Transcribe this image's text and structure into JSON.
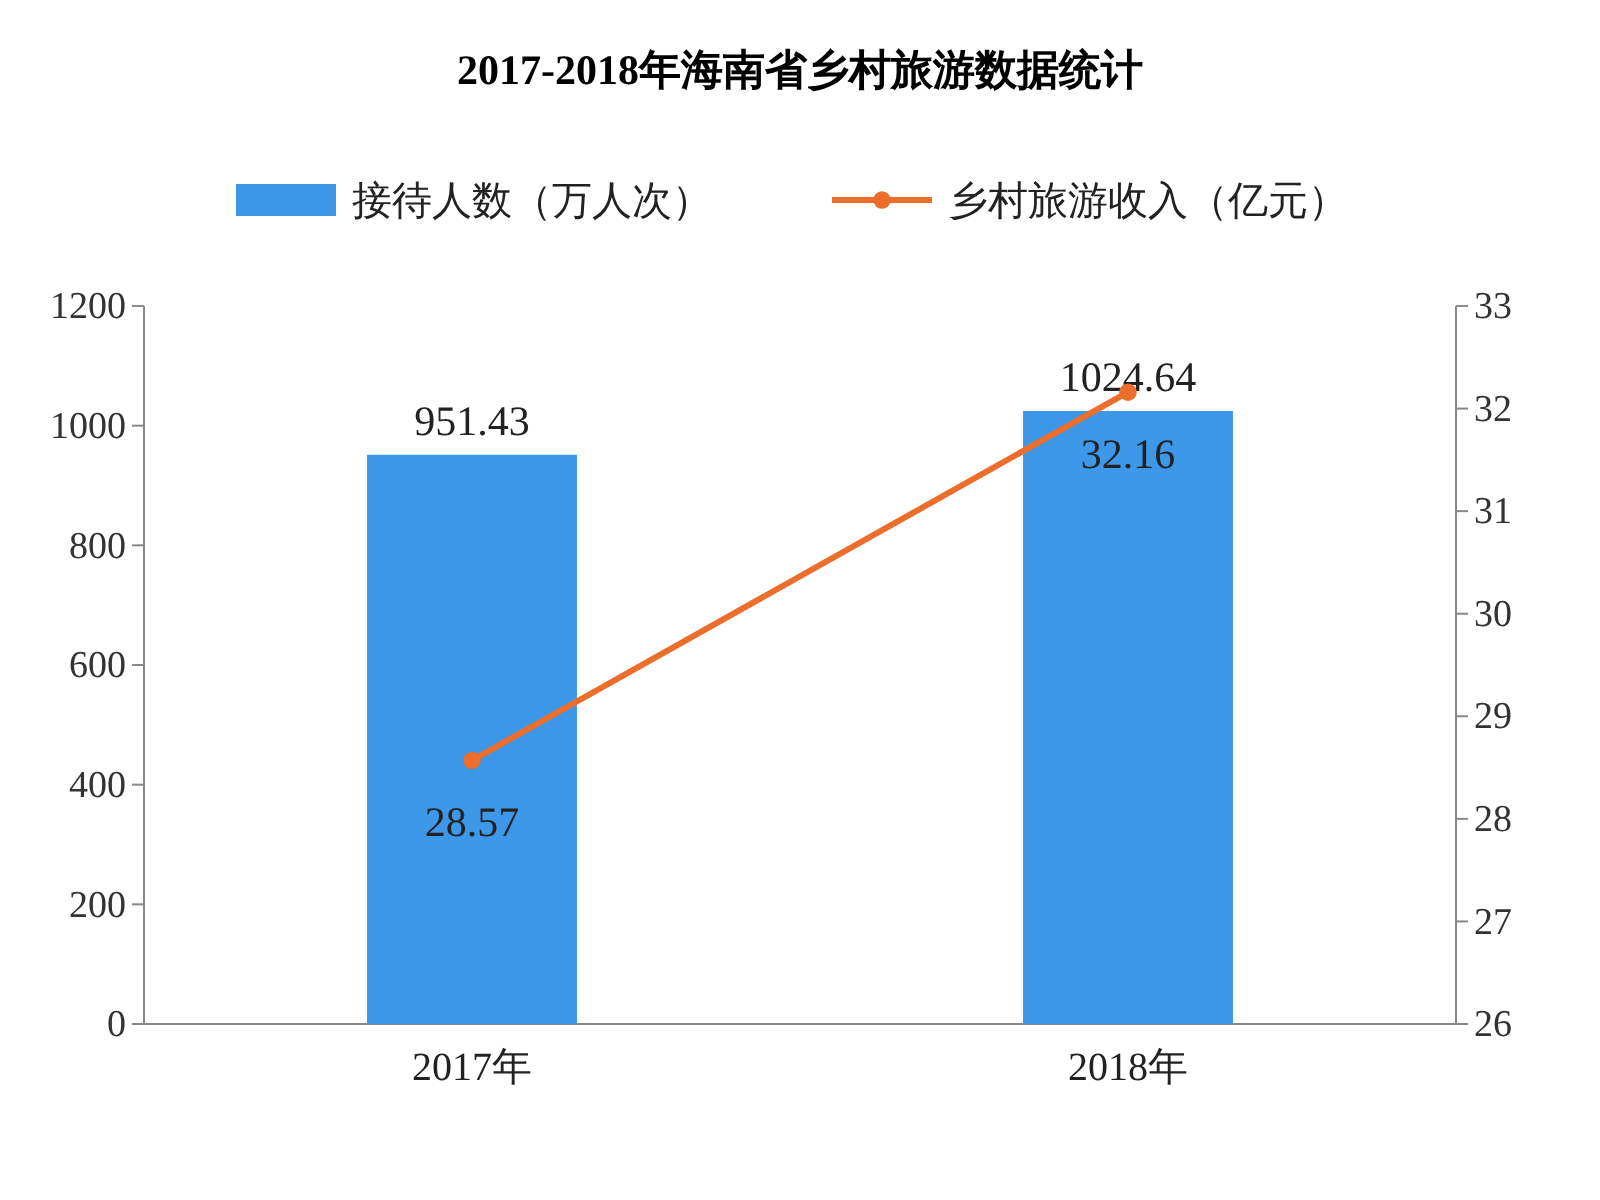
{
  "chart_data": {
    "type": "bar",
    "title": "2017-2018年海南省乡村旅游数据统计",
    "categories": [
      "2017年",
      "2018年"
    ],
    "series": [
      {
        "name": "接待人数（万人次）",
        "color": "#3d98ea",
        "values": [
          951.43,
          1024.64
        ]
      },
      {
        "name": "乡村旅游收入（亿元）",
        "type": "line",
        "axis": "y2",
        "color": "#ed6d2b",
        "values": [
          28.57,
          32.16
        ]
      }
    ],
    "ylim": [
      0,
      1200
    ],
    "yticks": [
      0,
      200,
      400,
      600,
      800,
      1000,
      1200
    ],
    "y2lim": [
      26,
      33
    ],
    "y2ticks": [
      26,
      27,
      28,
      29,
      30,
      31,
      32,
      33
    ],
    "data_labels": true,
    "grid": false,
    "legend": "top",
    "marker": "circle",
    "line_style": "solid"
  }
}
